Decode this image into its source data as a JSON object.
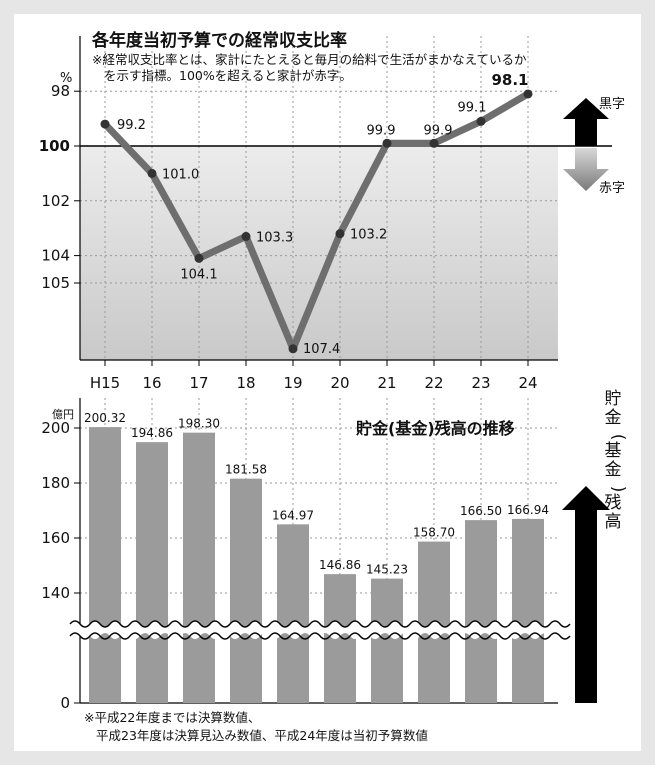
{
  "chart_data": [
    {
      "type": "line",
      "title": "各年度当初予算での経常収支比率",
      "note_lines": [
        "※経常収支比率とは、家計にたとえると毎月の給料で生活がまかなえているか",
        "を示す指標。100%を超えると家計が赤字。"
      ],
      "unit": "%",
      "categories": [
        "H15",
        "16",
        "17",
        "18",
        "19",
        "20",
        "21",
        "22",
        "23",
        "24"
      ],
      "values": [
        99.2,
        101.0,
        104.1,
        103.3,
        107.4,
        103.2,
        99.9,
        99.9,
        99.1,
        98.1
      ],
      "value_labels": [
        "99.2",
        "101.0",
        "104.1",
        "103.3",
        "107.4",
        "103.2",
        "99.9",
        "99.9",
        "99.1",
        "98.1"
      ],
      "y_ticks": [
        "98",
        "100",
        "102",
        "104",
        "105"
      ],
      "y_axis_inverted": true,
      "reference_line": 100,
      "legend_up": "黒字",
      "legend_down": "赤字",
      "grid": true
    },
    {
      "type": "bar",
      "title": "貯金(基金)残高の推移",
      "unit": "億円",
      "categories": [
        "H15",
        "16",
        "17",
        "18",
        "19",
        "20",
        "21",
        "22",
        "23",
        "24"
      ],
      "values": [
        200.32,
        194.86,
        198.3,
        181.58,
        164.97,
        146.86,
        145.23,
        158.7,
        166.5,
        166.94
      ],
      "value_labels": [
        "200.32",
        "194.86",
        "198.30",
        "181.58",
        "164.97",
        "146.86",
        "145.23",
        "158.70",
        "166.50",
        "166.94"
      ],
      "y_ticks": [
        "200",
        "180",
        "160",
        "140",
        "0"
      ],
      "axis_break": true,
      "side_label": "貯金(基金)残高",
      "grid": true
    }
  ],
  "footnote": [
    "※平成22年度までは決算数値、",
    "平成23年度は決算見込み数値、平成24年度は当初予算数値"
  ],
  "colors": {
    "background": "#e6e6e6",
    "panel": "#ffffff",
    "deficit_shade": "#cfcfcf",
    "line": "#6e6e6e",
    "marker": "#333333",
    "bar": "#9b9b9b",
    "up_arrow": "#000000",
    "down_arrow": "#8c8c8c",
    "axis": "#000000"
  }
}
